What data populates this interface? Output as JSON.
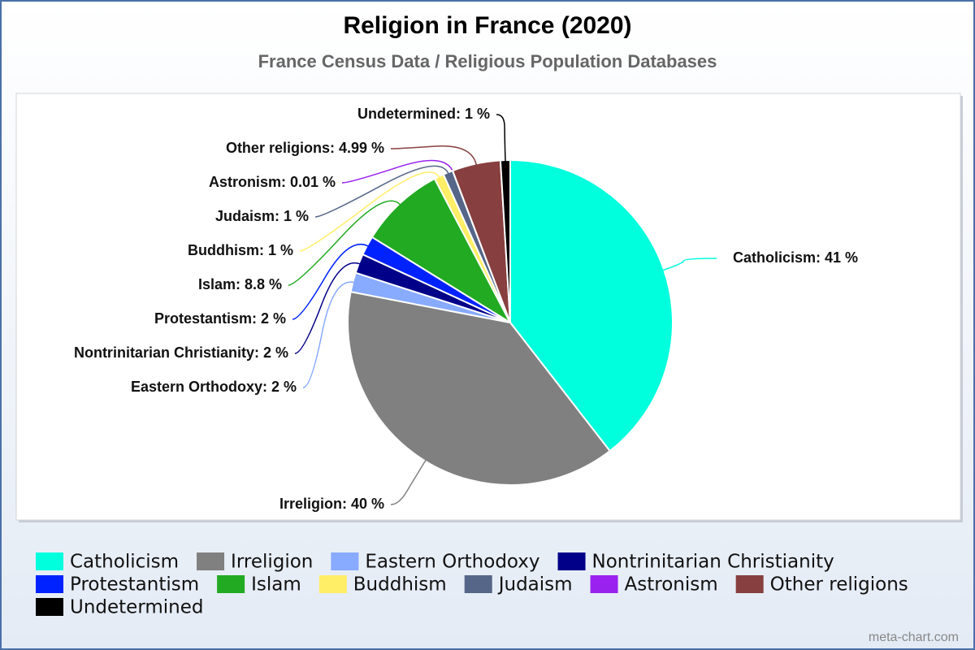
{
  "chart_data": {
    "type": "pie",
    "title": "Religion in France (2020)",
    "subtitle": "France Census Data / Religious Population Databases",
    "categories": [
      "Catholicism",
      "Irreligion",
      "Eastern Orthodoxy",
      "Nontrinitarian Christianity",
      "Protestantism",
      "Islam",
      "Buddhism",
      "Judaism",
      "Astronism",
      "Other religions",
      "Undetermined"
    ],
    "values": [
      41,
      40,
      2,
      2,
      2,
      8.8,
      1,
      1,
      0.01,
      4.99,
      1
    ],
    "value_labels": [
      "Catholicism: 41 %",
      "Irreligion: 40 %",
      "Eastern Orthodoxy: 2 %",
      "Nontrinitarian Christianity: 2 %",
      "Protestantism: 2 %",
      "Islam: 8.8 %",
      "Buddhism: 1 %",
      "Judaism: 1 %",
      "Astronism: 0.01 %",
      "Other religions: 4.99 %",
      "Undetermined: 1 %"
    ],
    "colors": [
      "#00ffdd",
      "#808080",
      "#88aaff",
      "#000088",
      "#0022ff",
      "#22aa22",
      "#ffee66",
      "#556688",
      "#9922ee",
      "#883f3f",
      "#000000"
    ],
    "legend": "bottom",
    "watermark": "meta-chart.com"
  }
}
